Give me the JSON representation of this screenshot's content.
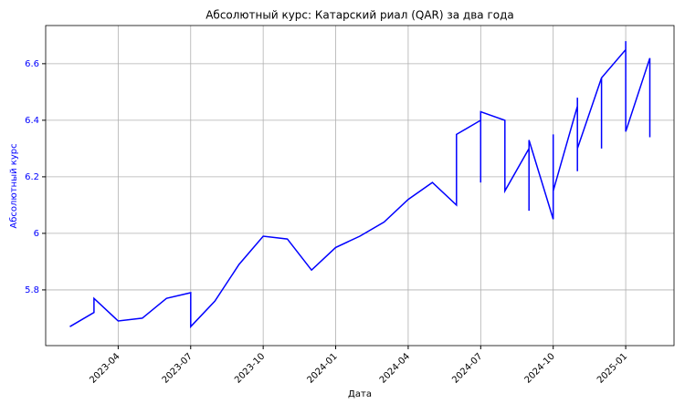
{
  "chart_data": {
    "type": "line",
    "title": "Абсолютный курс: Катарский риал (QAR) за два года",
    "x_label": "Дата",
    "y_label": "Абсолютный курс",
    "x": [
      "2023-02",
      "2023-03",
      "2023-03",
      "2023-04",
      "2023-05",
      "2023-06",
      "2023-07",
      "2023-07",
      "2023-08",
      "2023-09",
      "2023-10",
      "2023-11",
      "2023-12",
      "2024-01",
      "2024-02",
      "2024-03",
      "2024-04",
      "2024-05",
      "2024-06",
      "2024-06",
      "2024-07",
      "2024-07",
      "2024-07",
      "2024-08",
      "2024-08",
      "2024-09",
      "2024-09",
      "2024-09",
      "2024-10",
      "2024-10",
      "2024-10",
      "2024-11",
      "2024-11",
      "2024-11",
      "2024-11",
      "2024-12",
      "2024-12",
      "2024-12",
      "2025-01",
      "2025-01",
      "2025-01",
      "2025-01",
      "2025-02",
      "2025-02"
    ],
    "series": [
      {
        "name": "Абсолютный курс",
        "color": "#0000ff",
        "values": [
          5.67,
          5.72,
          5.77,
          5.69,
          5.7,
          5.77,
          5.79,
          5.67,
          5.76,
          5.89,
          5.99,
          5.98,
          5.87,
          5.95,
          5.99,
          6.04,
          6.12,
          6.18,
          6.1,
          6.35,
          6.4,
          6.18,
          6.43,
          6.4,
          6.15,
          6.3,
          6.08,
          6.33,
          6.05,
          6.35,
          6.15,
          6.45,
          6.22,
          6.48,
          6.3,
          6.55,
          6.3,
          6.55,
          6.65,
          6.4,
          6.68,
          6.36,
          6.62,
          6.34
        ]
      }
    ],
    "xlim": [
      "2023-01",
      "2025-03"
    ],
    "xticks": [
      "2023-04",
      "2023-07",
      "2023-10",
      "2024-01",
      "2024-04",
      "2024-07",
      "2024-10",
      "2025-01"
    ],
    "ylim": [
      5.603,
      6.735
    ],
    "yticks": [
      5.8,
      6.0,
      6.2,
      6.4,
      6.6
    ],
    "y_tick_color": "#0000ff",
    "grid": true
  }
}
